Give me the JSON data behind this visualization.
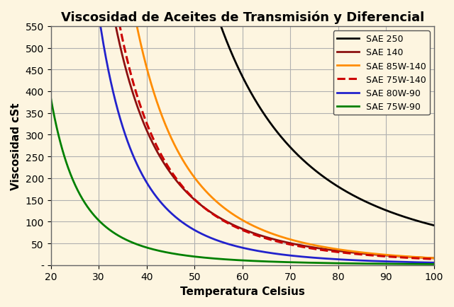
{
  "title": "Viscosidad de Aceites de Transmisión y Diferencial",
  "xlabel": "Temperatura Celsius",
  "ylabel": "Viscosidad cSt",
  "xlim": [
    20,
    100
  ],
  "ylim": [
    0,
    550
  ],
  "yticks": [
    0,
    50,
    100,
    150,
    200,
    250,
    300,
    350,
    400,
    450,
    500,
    550
  ],
  "xticks": [
    20,
    30,
    40,
    50,
    60,
    70,
    80,
    90,
    100
  ],
  "background_color": "#fdf5e0",
  "grid_color": "#b0b0b0",
  "series": [
    {
      "label": "SAE 250",
      "color": "#000000",
      "linestyle": "solid",
      "linewidth": 2.0,
      "a": 115000000.0,
      "b": 3.05
    },
    {
      "label": "SAE 140",
      "color": "#8B1010",
      "linestyle": "solid",
      "linewidth": 2.0,
      "a": 50000000.0,
      "b": 3.25
    },
    {
      "label": "SAE 85W-140",
      "color": "#FF8C00",
      "linestyle": "solid",
      "linewidth": 2.0,
      "a": 320000000.0,
      "b": 3.65
    },
    {
      "label": "SAE 75W-140",
      "color": "#CC0000",
      "linestyle": "dashed",
      "linewidth": 2.2,
      "a": 110000000.0,
      "b": 3.45
    },
    {
      "label": "SAE 80W-90",
      "color": "#2222CC",
      "linestyle": "solid",
      "linewidth": 2.0,
      "a": 280000000.0,
      "b": 3.85
    },
    {
      "label": "SAE 75W-90",
      "color": "#008000",
      "linestyle": "solid",
      "linewidth": 2.0,
      "a": 6500000.0,
      "b": 3.25
    }
  ],
  "legend_loc": "upper right",
  "title_fontsize": 13,
  "label_fontsize": 11,
  "tick_fontsize": 10
}
